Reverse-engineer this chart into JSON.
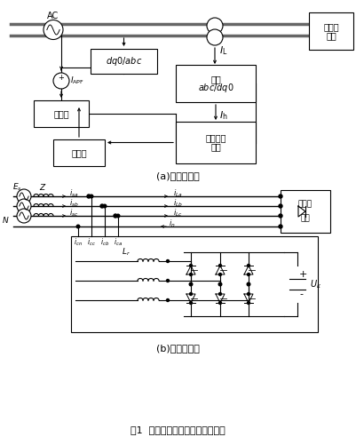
{
  "title": "图1  系统拓扑结构图及工作示意图",
  "subtitle_a": "(a)拓扑结构图",
  "subtitle_b": "(b)工作示意图",
  "bg_color": "#ffffff",
  "lc": "#000000",
  "fig_w": 4.02,
  "fig_h": 4.92,
  "dpi": 100,
  "bus_gray": "#666666"
}
